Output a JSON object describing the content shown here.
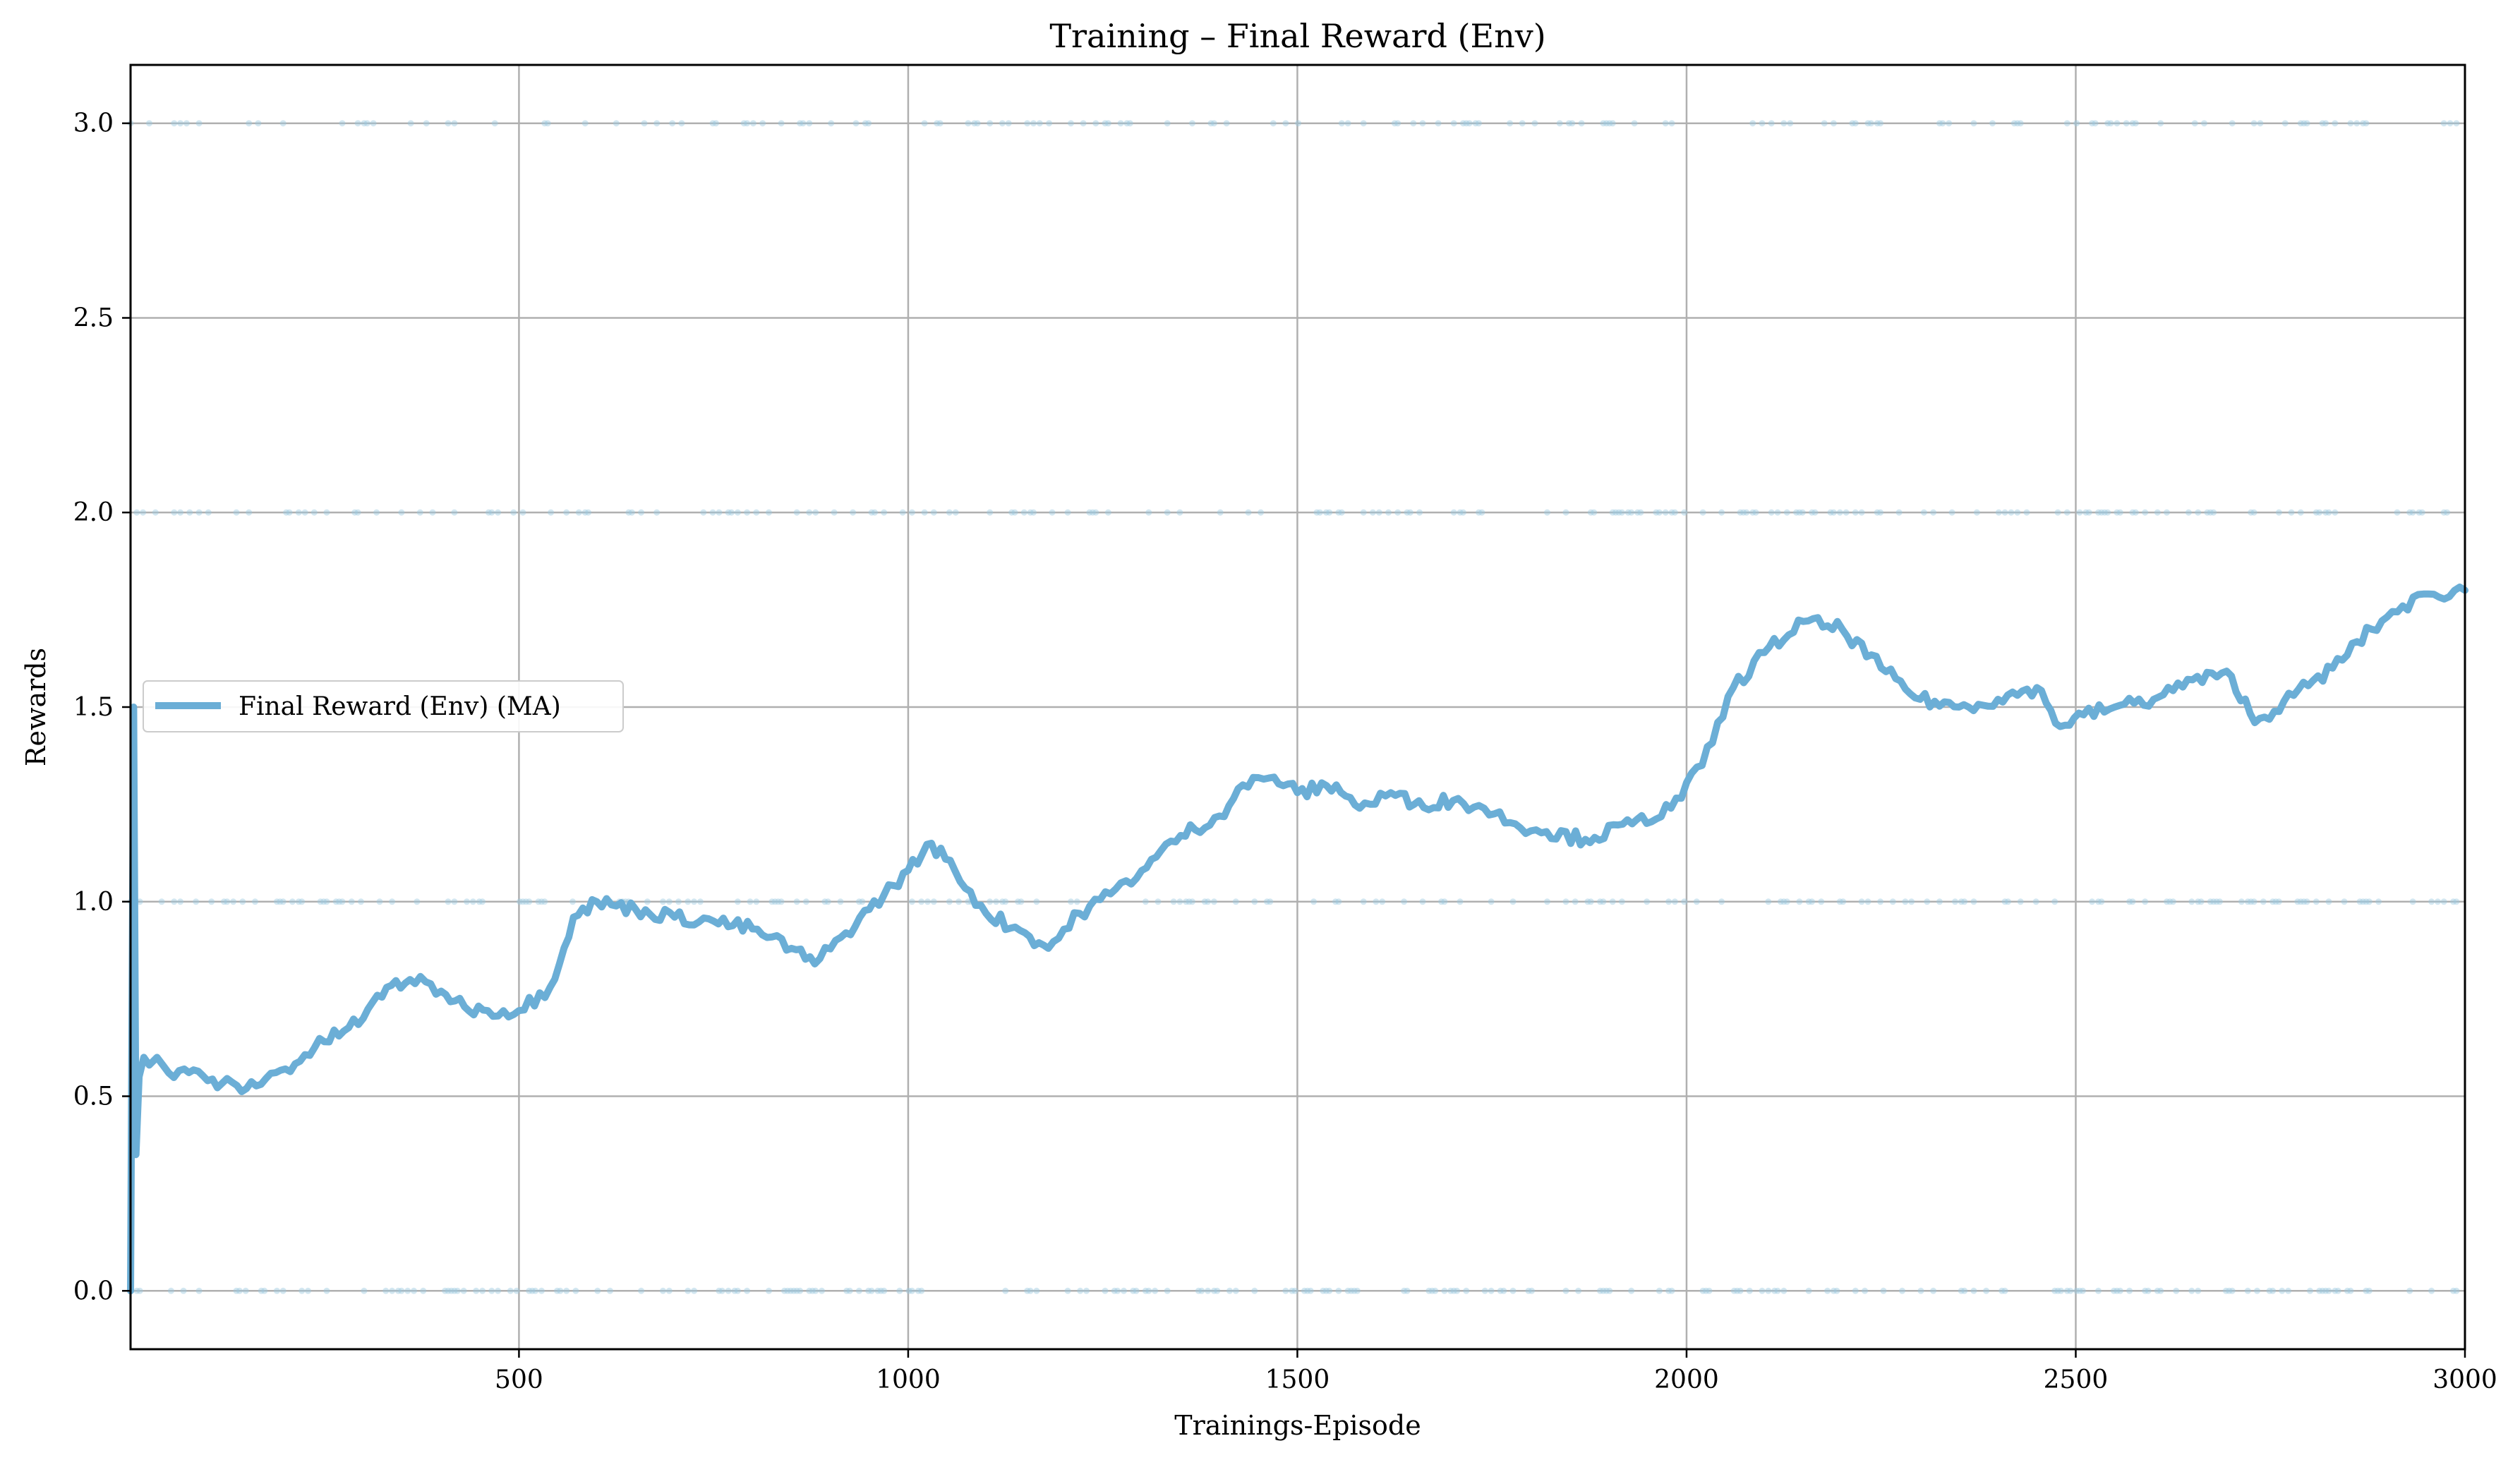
{
  "chart_data": {
    "type": "line",
    "title": "Training – Final Reward (Env)",
    "xlabel": "Trainings-Episode",
    "ylabel": "Rewards",
    "xlim": [
      1,
      3000
    ],
    "ylim": [
      -0.15,
      3.15
    ],
    "x_ticks": [
      500,
      1000,
      1500,
      2000,
      2500,
      3000
    ],
    "y_ticks": [
      0.0,
      0.5,
      1.0,
      1.5,
      2.0,
      2.5,
      3.0
    ],
    "x_tick_labels": [
      "500",
      "1000",
      "1500",
      "2000",
      "2500",
      "3000"
    ],
    "y_tick_labels": [
      "0.0",
      "0.5",
      "1.0",
      "1.5",
      "2.0",
      "2.5",
      "3.0"
    ],
    "grid": true,
    "legend": {
      "placement": "center-left",
      "entries": [
        "Final Reward (Env) (MA)"
      ]
    },
    "colors": {
      "line": "#6baed6",
      "points": "#9ecae1"
    },
    "raw_reward_levels": [
      0,
      1,
      2,
      3
    ],
    "series": [
      {
        "name": "Final Reward (Env) (MA)",
        "x": [
          1,
          5,
          8,
          12,
          18,
          25,
          35,
          50,
          70,
          100,
          150,
          200,
          250,
          300,
          330,
          360,
          400,
          430,
          460,
          500,
          540,
          570,
          600,
          650,
          700,
          750,
          800,
          850,
          880,
          920,
          950,
          1000,
          1030,
          1060,
          1100,
          1150,
          1180,
          1220,
          1260,
          1300,
          1350,
          1400,
          1430,
          1470,
          1500,
          1550,
          1580,
          1620,
          1650,
          1700,
          1740,
          1780,
          1820,
          1870,
          1930,
          1980,
          2020,
          2060,
          2100,
          2150,
          2200,
          2250,
          2300,
          2350,
          2400,
          2450,
          2480,
          2510,
          2550,
          2600,
          2650,
          2700,
          2730,
          2780,
          2830,
          2880,
          2920,
          2960,
          3000
        ],
        "y": [
          0.0,
          1.5,
          0.35,
          0.55,
          0.6,
          0.58,
          0.6,
          0.56,
          0.57,
          0.54,
          0.52,
          0.57,
          0.64,
          0.7,
          0.78,
          0.8,
          0.77,
          0.73,
          0.72,
          0.72,
          0.78,
          0.96,
          1.0,
          0.98,
          0.96,
          0.95,
          0.93,
          0.88,
          0.84,
          0.92,
          0.98,
          1.08,
          1.15,
          1.08,
          0.97,
          0.92,
          0.88,
          0.97,
          1.02,
          1.08,
          1.17,
          1.22,
          1.3,
          1.32,
          1.28,
          1.3,
          1.24,
          1.28,
          1.25,
          1.26,
          1.24,
          1.2,
          1.18,
          1.16,
          1.2,
          1.24,
          1.35,
          1.55,
          1.64,
          1.72,
          1.7,
          1.6,
          1.52,
          1.5,
          1.52,
          1.55,
          1.45,
          1.48,
          1.5,
          1.52,
          1.57,
          1.58,
          1.46,
          1.53,
          1.6,
          1.7,
          1.76,
          1.79,
          1.8
        ]
      }
    ]
  }
}
